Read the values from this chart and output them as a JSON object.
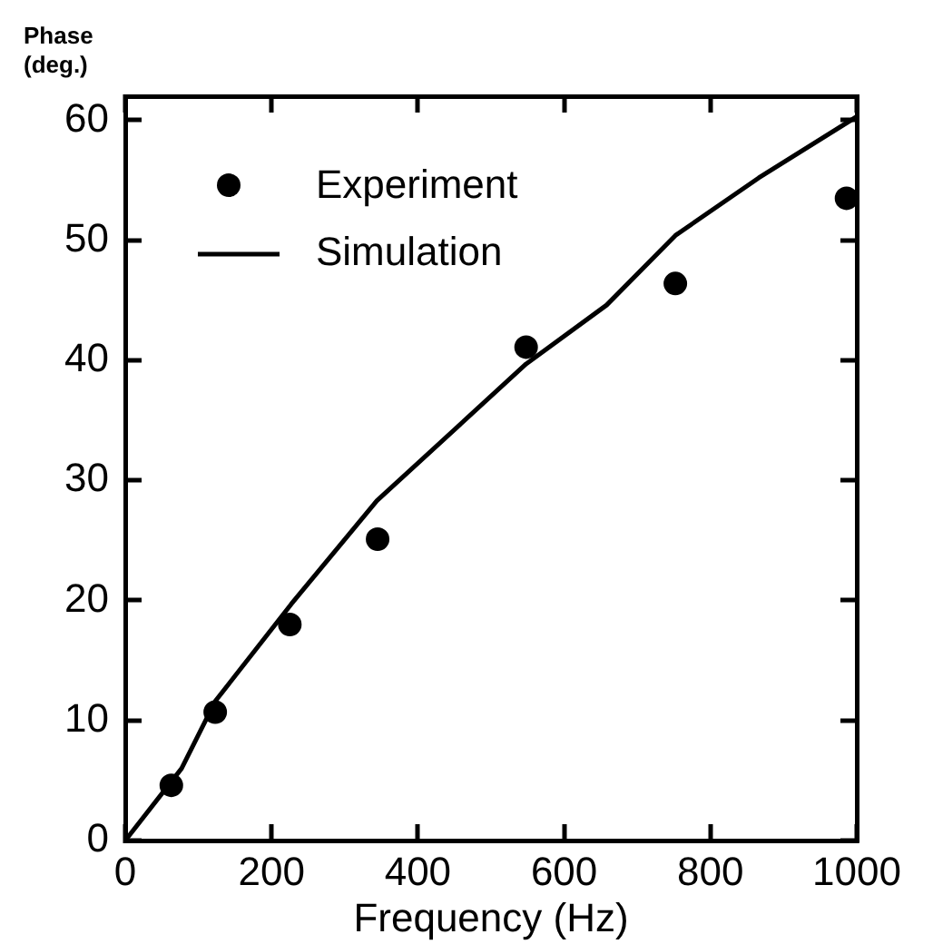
{
  "chart_data": {
    "type": "scatter",
    "xlabel": "Frequency (Hz)",
    "ylabel": "Phase\n(deg.)",
    "xlim": [
      0,
      1000
    ],
    "xticks": [
      0,
      200,
      400,
      600,
      800,
      1000
    ],
    "ylim": [
      0,
      62
    ],
    "yticks": [
      0,
      10,
      20,
      30,
      40,
      50,
      60
    ],
    "legend": "top left",
    "grid": false,
    "series": [
      {
        "name": "Experiment",
        "color": "#000000",
        "marker": "circle",
        "x": [
          63,
          123,
          225,
          345,
          548,
          752,
          986
        ],
        "values": [
          4.6,
          10.7,
          18,
          25.1,
          41.1,
          46.4,
          53.5
        ]
      },
      {
        "name": "Simulation",
        "type": "line",
        "color": "#000000",
        "marker": "none",
        "line_style": "solid",
        "x": [
          0,
          77,
          123,
          227,
          344,
          548,
          658,
          752,
          866,
          1000
        ],
        "values": [
          0,
          6,
          11.6,
          19.7,
          28.3,
          39.7,
          44.6,
          50.4,
          55.2,
          60.3
        ]
      }
    ]
  }
}
